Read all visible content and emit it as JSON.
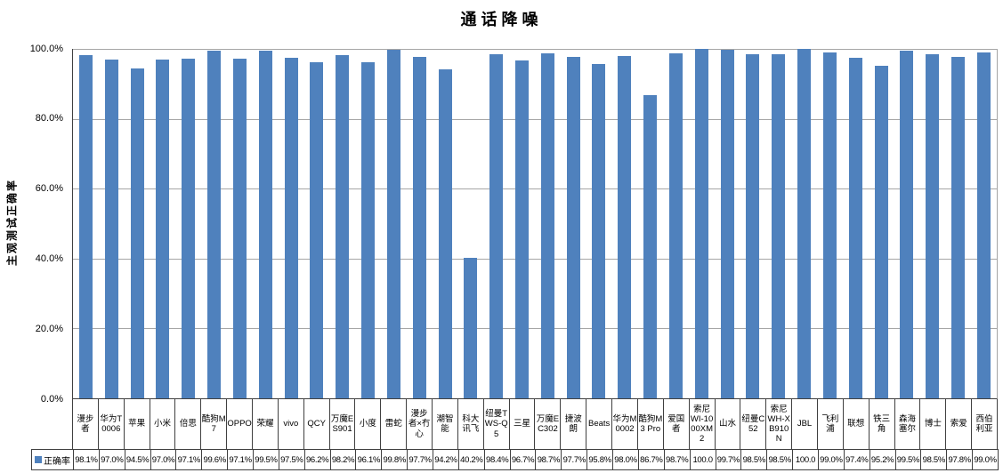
{
  "chart": {
    "title": "通话降噪",
    "y_axis_title": "主观测试正确率",
    "legend_label": "正确率",
    "y_ticks": [
      "100.0%",
      "80.0%",
      "60.0%",
      "40.0%",
      "20.0%",
      "0.0%"
    ],
    "colors": {
      "bar": "#4F81BD",
      "gridline": "#A6A6A6",
      "axis": "#404040",
      "table_border": "#404040",
      "background": "#FFFFFF",
      "text": "#000000"
    }
  },
  "chart_data": {
    "type": "bar",
    "title": "通话降噪",
    "xlabel": "",
    "ylabel": "主观测试正确率",
    "ylim": [
      0,
      100
    ],
    "y_unit": "%",
    "y_tick_step": 20,
    "grid": true,
    "legend_position": "bottom-data-table",
    "categories": [
      "漫步者",
      "华为T0006",
      "苹果",
      "小米",
      "倍思",
      "酷狗M7",
      "OPPO",
      "荣耀",
      "vivo",
      "QCY",
      "万魔ES901",
      "小度",
      "雷蛇",
      "漫步者×冇心",
      "潮智能",
      "科大讯飞",
      "纽曼TWS-Q5",
      "三星",
      "万魔EC302",
      "捷波朗",
      "Beats",
      "华为M0002",
      "酷狗M3 Pro",
      "爱国者",
      "索尼WI-1000XM2",
      "山水",
      "纽曼C52",
      "索尼WH-XB910N",
      "JBL",
      "飞利浦",
      "联想",
      "铁三角",
      "森海塞尔",
      "博士",
      "索爱",
      "西伯利亚"
    ],
    "series": [
      {
        "name": "正确率",
        "values": [
          98.1,
          97.0,
          94.5,
          97.0,
          97.1,
          99.6,
          97.1,
          99.5,
          97.5,
          96.2,
          98.2,
          96.1,
          99.8,
          97.7,
          94.2,
          40.2,
          98.4,
          96.7,
          98.7,
          97.7,
          95.8,
          98.0,
          86.7,
          98.7,
          100.0,
          99.7,
          98.5,
          98.5,
          100.0,
          99.0,
          97.4,
          95.2,
          99.5,
          98.5,
          97.8,
          99.0
        ]
      }
    ],
    "value_labels": [
      "98.1%",
      "97.0%",
      "94.5%",
      "97.0%",
      "97.1%",
      "99.6%",
      "97.1%",
      "99.5%",
      "97.5%",
      "96.2%",
      "98.2%",
      "96.1%",
      "99.8%",
      "97.7%",
      "94.2%",
      "40.2%",
      "98.4%",
      "96.7%",
      "98.7%",
      "97.7%",
      "95.8%",
      "98.0%",
      "86.7%",
      "98.7%",
      "100.0",
      "99.7%",
      "98.5%",
      "98.5%",
      "100.0",
      "99.0%",
      "97.4%",
      "95.2%",
      "99.5%",
      "98.5%",
      "97.8%",
      "99.0%"
    ]
  }
}
